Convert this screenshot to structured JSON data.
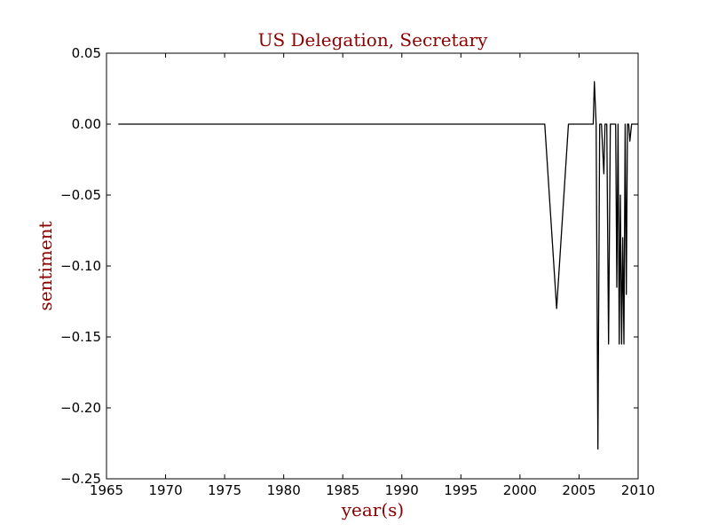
{
  "chart_data": {
    "type": "line",
    "title": "US Delegation, Secretary",
    "xlabel": "year(s)",
    "ylabel": "sentiment",
    "xlim": [
      1965,
      2010
    ],
    "ylim": [
      -0.25,
      0.05
    ],
    "xticks": [
      1965,
      1970,
      1975,
      1980,
      1985,
      1990,
      1995,
      2000,
      2005,
      2010
    ],
    "yticks": [
      0.05,
      0.0,
      -0.05,
      -0.1,
      -0.15,
      -0.2,
      -0.25
    ],
    "xtick_labels": [
      "1965",
      "1970",
      "1975",
      "1980",
      "1985",
      "1990",
      "1995",
      "2000",
      "2005",
      "2010"
    ],
    "ytick_labels": [
      "0.05",
      "0.00",
      "−0.05",
      "−0.10",
      "−0.15",
      "−0.20",
      "−0.25"
    ],
    "grid": false,
    "colors": {
      "title": "#8b0000",
      "line": "#000000"
    },
    "series": [
      {
        "x": [
          1966.0,
          2002.1,
          2003.1,
          2004.1,
          2006.2,
          2006.3,
          2006.45,
          2006.6,
          2006.75,
          2006.9,
          2007.1,
          2007.2,
          2007.35,
          2007.5,
          2007.65,
          2007.75,
          2007.9,
          2008.1,
          2008.2,
          2008.3,
          2008.4,
          2008.5,
          2008.6,
          2008.7,
          2008.8,
          2008.9,
          2009.0,
          2009.1,
          2009.2,
          2009.3,
          2009.45,
          2009.6,
          2009.75,
          2010.0
        ],
        "y": [
          0.0,
          0.0,
          -0.13,
          0.0,
          0.0,
          0.03,
          0.0,
          -0.229,
          0.0,
          0.0,
          -0.035,
          0.0,
          0.0,
          -0.155,
          0.0,
          0.0,
          0.0,
          0.0,
          -0.115,
          0.0,
          -0.155,
          -0.05,
          -0.155,
          -0.08,
          -0.155,
          0.0,
          -0.12,
          0.0,
          0.0,
          -0.012,
          0.0,
          0.0,
          0.0,
          0.0
        ]
      }
    ]
  }
}
